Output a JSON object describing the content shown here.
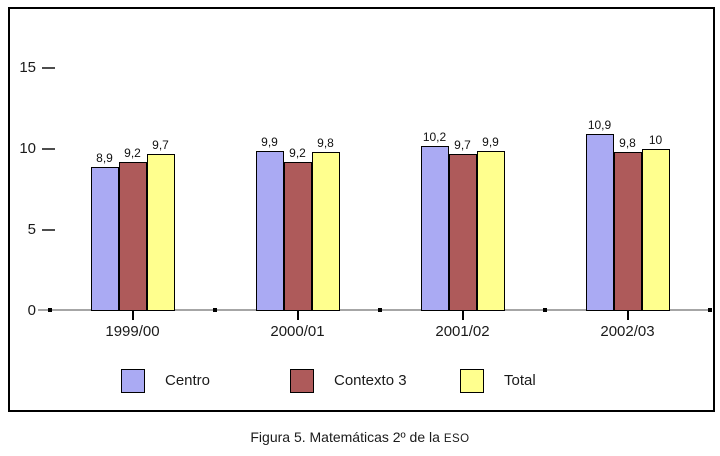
{
  "figure": {
    "caption": {
      "text": "Figura 5. Matemáticas 2º de la",
      "suffix": "ESO"
    }
  },
  "chart_data": {
    "type": "bar",
    "title": "Figura 5. Matemáticas 2º de la ESO",
    "categories": [
      "1999/00",
      "2000/01",
      "2001/02",
      "2002/03"
    ],
    "series": [
      {
        "name": "Centro",
        "color": "#aaaaf3",
        "values": [
          8.9,
          9.9,
          10.2,
          10.9
        ]
      },
      {
        "name": "Contexto 3",
        "color": "#ae5a5a",
        "values": [
          9.2,
          9.2,
          9.7,
          9.8
        ]
      },
      {
        "name": "Total",
        "color": "#ffff8e",
        "values": [
          9.7,
          9.8,
          9.9,
          10
        ]
      }
    ],
    "value_labels": [
      [
        "8,9",
        "9,2",
        "9,7"
      ],
      [
        "9,9",
        "9,2",
        "9,8"
      ],
      [
        "10,2",
        "9,7",
        "9,9"
      ],
      [
        "10,9",
        "9,8",
        "10"
      ]
    ],
    "yticks": [
      0,
      5,
      10,
      15
    ],
    "ylim": [
      0,
      18.6
    ],
    "xlabel": "",
    "ylabel": "",
    "grid": false,
    "legend_position": "bottom",
    "decimal_separator": ",",
    "axis_color": "#a6a6a6",
    "tick_color": "#000000",
    "bar_border_color": "#000000"
  }
}
